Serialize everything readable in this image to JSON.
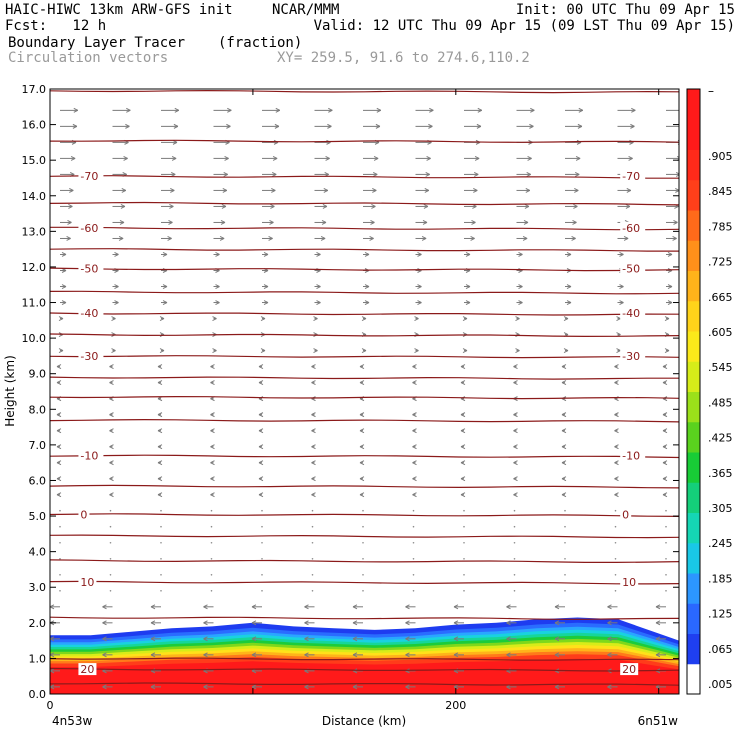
{
  "header": {
    "model": "HAIC-HIWC 13km ARW-GFS init",
    "org": "NCAR/MMM",
    "init": "Init: 00 UTC Thu 09 Apr 15",
    "fcst": "Fcst:   12 h",
    "valid": "Valid: 12 UTC Thu 09 Apr 15 (09 LST Thu 09 Apr 15)",
    "field1": "Boundary Layer Tracer",
    "field1_units": "(fraction)",
    "field2": "Circulation vectors",
    "xy": "XY= 259.5, 91.6 to 274.6,110.2"
  },
  "chart_data": {
    "type": "cross-section",
    "xlabel": "Distance (km)",
    "ylabel": "Height (km)",
    "xlim": [
      0,
      310
    ],
    "ylim": [
      0,
      17
    ],
    "x_ticks": [
      0,
      200
    ],
    "y_ticks": [
      "0.0",
      "1.0",
      "2.0",
      "3.0",
      "4.0",
      "5.0",
      "6.0",
      "7.0",
      "8.0",
      "9.0",
      "10.0",
      "11.0",
      "12.0",
      "13.0",
      "14.0",
      "15.0",
      "16.0",
      "17.0"
    ],
    "x_end_labels": {
      "left": "4n53w",
      "right": "6n51w"
    },
    "colorbar": {
      "labels": [
        ".005",
        ".065",
        ".125",
        ".185",
        ".245",
        ".305",
        ".365",
        ".425",
        ".485",
        ".545",
        ".605",
        ".665",
        ".725",
        ".785",
        ".845",
        ".905"
      ],
      "top_label": "–",
      "colors": [
        "#ffffff",
        "#1f3ff0",
        "#2a68ff",
        "#2c96ff",
        "#19c8e6",
        "#15d6b4",
        "#14cf7a",
        "#18cc36",
        "#5ad21e",
        "#9be01a",
        "#d6ec19",
        "#fbe91a",
        "#ffd31a",
        "#ffb31a",
        "#ff901a",
        "#ff6a1a",
        "#ff3f1a",
        "#ff2a1a",
        "#ff1a1a",
        "#ff1a1a"
      ]
    },
    "tracer_profile": {
      "x": [
        0,
        20,
        40,
        60,
        80,
        100,
        120,
        140,
        160,
        180,
        200,
        220,
        240,
        260,
        280,
        300,
        310
      ],
      "top_km": [
        1.65,
        1.65,
        1.75,
        1.85,
        1.9,
        2.0,
        1.9,
        1.85,
        1.8,
        1.85,
        1.95,
        2.0,
        2.1,
        2.15,
        2.1,
        1.7,
        1.5
      ]
    },
    "isotherms": [
      {
        "label": "-70",
        "height_km": 14.55
      },
      {
        "label": "-60",
        "height_km": 13.1
      },
      {
        "label": "-50",
        "height_km": 11.95
      },
      {
        "label": "-40",
        "height_km": 10.7
      },
      {
        "label": "-30",
        "height_km": 9.5
      },
      {
        "label": "-10",
        "height_km": 6.7
      },
      {
        "label": "0",
        "height_km": 5.05
      },
      {
        "label": "10",
        "height_km": 3.15
      },
      {
        "label": "20",
        "height_km": 0.7
      }
    ],
    "unlabeled_contours_km": [
      16.95,
      15.55,
      13.8,
      12.5,
      11.3,
      10.1,
      8.9,
      8.35,
      7.7,
      5.85,
      4.45,
      3.75,
      2.15,
      1.0,
      0.3
    ]
  }
}
